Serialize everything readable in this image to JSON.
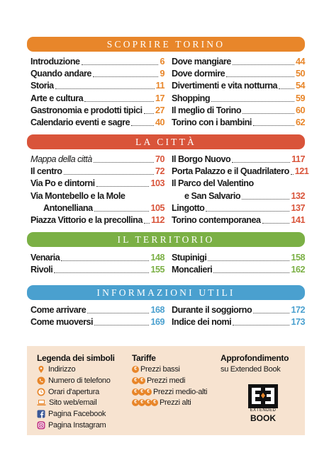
{
  "colors": {
    "orange": "#e8862a",
    "red": "#d9543a",
    "green": "#7bb045",
    "blue": "#4aa0cf",
    "legend_bg": "#f7e3d0"
  },
  "sections": {
    "s1": {
      "title": "Scoprire Torino",
      "left": [
        {
          "label": "Introduzione",
          "page": "6"
        },
        {
          "label": "Quando andare",
          "page": "9"
        },
        {
          "label": "Storia",
          "page": "11"
        },
        {
          "label": "Arte e cultura",
          "page": "17"
        },
        {
          "label": "Gastronomia e prodotti tipici",
          "page": "27"
        },
        {
          "label": "Calendario eventi e sagre",
          "page": "40"
        }
      ],
      "right": [
        {
          "label": "Dove mangiare",
          "page": "44"
        },
        {
          "label": "Dove dormire",
          "page": "50"
        },
        {
          "label": "Divertimenti e vita notturna",
          "page": "54"
        },
        {
          "label": "Shopping",
          "page": "59"
        },
        {
          "label": "Il meglio di Torino",
          "page": "60"
        },
        {
          "label": "Torino con i bambini",
          "page": "62"
        }
      ]
    },
    "s2": {
      "title": "La città",
      "left": [
        {
          "label": "Mappa della città",
          "page": "70"
        },
        {
          "label": "Il centro",
          "page": "72"
        },
        {
          "label": "Via Po e dintorni",
          "page": "103"
        },
        {
          "label": "Via Montebello e la Mole",
          "page": ""
        },
        {
          "label": "Antonelliana",
          "page": "105"
        },
        {
          "label": "Piazza Vittorio e la precollina",
          "page": "112"
        }
      ],
      "right": [
        {
          "label": "Il Borgo Nuovo",
          "page": "117"
        },
        {
          "label": "Porta Palazzo e il Quadrilatero",
          "page": "121"
        },
        {
          "label": "Il Parco del Valentino",
          "page": ""
        },
        {
          "label": "e San Salvario",
          "page": "132"
        },
        {
          "label": "Lingotto",
          "page": "137"
        },
        {
          "label": "Torino contemporanea",
          "page": "141"
        }
      ]
    },
    "s3": {
      "title": "Il territorio",
      "left": [
        {
          "label": "Venaria",
          "page": "148"
        },
        {
          "label": "Rivoli",
          "page": "155"
        }
      ],
      "right": [
        {
          "label": "Stupinigi",
          "page": "158"
        },
        {
          "label": "Moncalieri",
          "page": "162"
        }
      ]
    },
    "s4": {
      "title": "Informazioni utili",
      "left": [
        {
          "label": "Come arrivare",
          "page": "168"
        },
        {
          "label": "Come muoversi",
          "page": "169"
        }
      ],
      "right": [
        {
          "label": "Durante il soggiorno",
          "page": "172"
        },
        {
          "label": "Indice dei nomi",
          "page": "173"
        }
      ]
    }
  },
  "legend": {
    "symbols_title": "Legenda dei simboli",
    "symbols": [
      {
        "icon": "pin-icon",
        "label": "Indirizzo"
      },
      {
        "icon": "phone-icon",
        "label": "Numero di telefono"
      },
      {
        "icon": "clock-icon",
        "label": "Orari d'apertura"
      },
      {
        "icon": "laptop-icon",
        "label": "Sito web/email"
      },
      {
        "icon": "facebook-icon",
        "label": "Pagina Facebook"
      },
      {
        "icon": "instagram-icon",
        "label": "Pagina Instagram"
      }
    ],
    "prices_title": "Tariffe",
    "coin_symbol": "€",
    "prices": [
      {
        "coins": 1,
        "label": "Prezzi bassi"
      },
      {
        "coins": 2,
        "label": "Prezzi medi"
      },
      {
        "coins": 3,
        "label": "Prezzi medio-alti"
      },
      {
        "coins": 4,
        "label": "Prezzi alti"
      }
    ],
    "extra_title": "Approfondimento",
    "extra_sub": "su Extended Book",
    "logo_small": "EXTENDED",
    "logo_big": "BOOK"
  }
}
